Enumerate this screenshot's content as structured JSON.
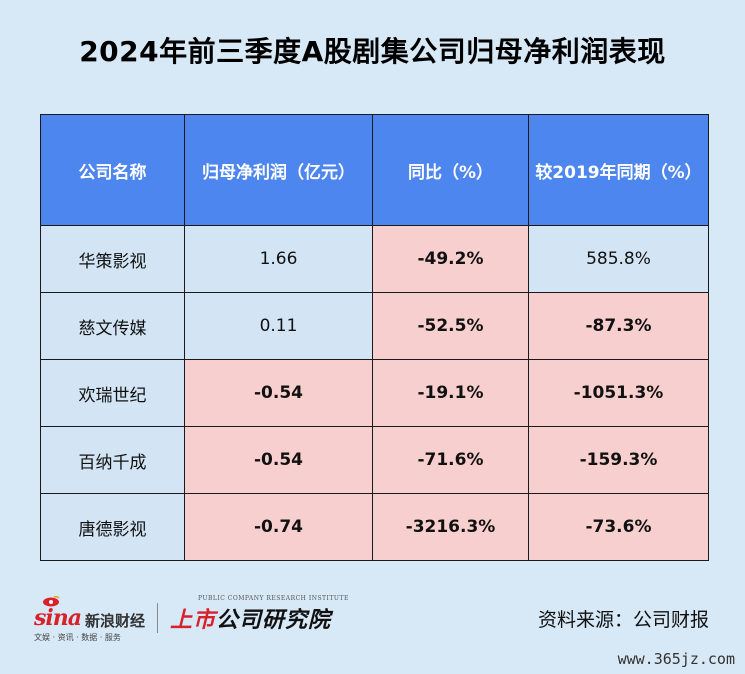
{
  "title": "2024年前三季度A股剧集公司归母净利润表现",
  "table": {
    "headers": [
      "公司名称",
      "归母净利润（亿元）",
      "同比（%）",
      "较2019年同期（%）"
    ],
    "rows": [
      {
        "company": "华策影视",
        "profit": "1.66",
        "yoy": "-49.2%",
        "vs2019": "585.8%"
      },
      {
        "company": "慈文传媒",
        "profit": "0.11",
        "yoy": "-52.5%",
        "vs2019": "-87.3%"
      },
      {
        "company": "欢瑞世纪",
        "profit": "-0.54",
        "yoy": "-19.1%",
        "vs2019": "-1051.3%"
      },
      {
        "company": "百纳千成",
        "profit": "-0.54",
        "yoy": "-71.6%",
        "vs2019": "-159.3%"
      },
      {
        "company": "唐德影视",
        "profit": "-0.74",
        "yoy": "-3216.3%",
        "vs2019": "-73.6%"
      }
    ]
  },
  "footer": {
    "sina_logo": "sina",
    "sina_cn": "新浪财经",
    "sina_sub": "文娱 · 资讯 · 数据 · 服务",
    "inst_name_red": "上市",
    "inst_name": "公司研究院",
    "inst_en": "PUBLIC COMPANY RESEARCH INSTITUTE",
    "source": "资料来源：公司财报",
    "watermark": "www.365jz.com"
  },
  "colors": {
    "background": "#d7e8f6",
    "header": "#4e86f0",
    "neutral_cell": "#d3e5f4",
    "negative_cell": "#f8cfcf",
    "negative_text": "#e2262e"
  }
}
